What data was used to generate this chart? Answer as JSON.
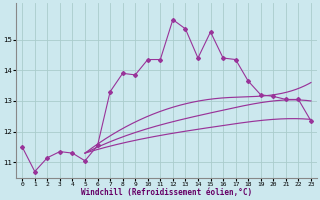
{
  "xlabel": "Windchill (Refroidissement éolien,°C)",
  "bg_color": "#cce8ee",
  "grid_color": "#aacccc",
  "line_color": "#993399",
  "xlim": [
    -0.5,
    23.5
  ],
  "ylim": [
    10.5,
    16.2
  ],
  "xticks": [
    0,
    1,
    2,
    3,
    4,
    5,
    6,
    7,
    8,
    9,
    10,
    11,
    12,
    13,
    14,
    15,
    16,
    17,
    18,
    19,
    20,
    21,
    22,
    23
  ],
  "yticks": [
    11,
    12,
    13,
    14,
    15
  ],
  "jagged_x": [
    0,
    1,
    2,
    3,
    4,
    5,
    6,
    7,
    8,
    9,
    10,
    11,
    12,
    13,
    14,
    15,
    16,
    17,
    18,
    19,
    20,
    21,
    22,
    23
  ],
  "jagged_y": [
    11.5,
    10.7,
    11.15,
    11.35,
    11.3,
    11.05,
    11.55,
    13.3,
    13.9,
    13.85,
    14.35,
    14.35,
    15.65,
    15.35,
    14.4,
    15.25,
    14.4,
    14.35,
    13.65,
    13.2,
    13.15,
    13.05,
    13.05,
    12.35
  ],
  "smooth1_ctrl": [
    [
      5.0,
      11.3
    ],
    [
      10,
      11.8
    ],
    [
      16,
      12.2
    ],
    [
      20,
      12.4
    ],
    [
      23,
      12.4
    ]
  ],
  "smooth2_ctrl": [
    [
      5.0,
      11.3
    ],
    [
      10,
      12.1
    ],
    [
      16,
      12.7
    ],
    [
      20,
      13.0
    ],
    [
      23,
      13.0
    ]
  ],
  "smooth3_ctrl": [
    [
      5.0,
      11.3
    ],
    [
      10,
      12.5
    ],
    [
      16,
      13.1
    ],
    [
      20,
      13.2
    ],
    [
      23,
      13.6
    ]
  ]
}
